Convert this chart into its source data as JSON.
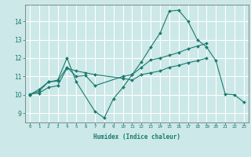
{
  "xlabel": "Humidex (Indice chaleur)",
  "xlim": [
    -0.5,
    23.5
  ],
  "ylim": [
    8.5,
    14.9
  ],
  "yticks": [
    9,
    10,
    11,
    12,
    13,
    14
  ],
  "xticks": [
    0,
    1,
    2,
    3,
    4,
    5,
    6,
    7,
    8,
    9,
    10,
    11,
    12,
    13,
    14,
    15,
    16,
    17,
    18,
    19,
    20,
    21,
    22,
    23
  ],
  "bg_color": "#cce8e8",
  "grid_color": "#ffffff",
  "line_color": "#1a7a6e",
  "series": [
    {
      "x": [
        0,
        1,
        2,
        3,
        4,
        5,
        7,
        8,
        9,
        10,
        11,
        12,
        13,
        14,
        15,
        16,
        17,
        18,
        19,
        20,
        21,
        22,
        23
      ],
      "y": [
        10.0,
        10.3,
        10.7,
        10.8,
        12.0,
        10.7,
        9.1,
        8.75,
        9.8,
        10.4,
        11.1,
        11.8,
        12.6,
        13.35,
        14.55,
        14.6,
        14.0,
        13.0,
        12.6,
        11.85,
        10.05,
        10.0,
        9.6
      ]
    },
    {
      "x": [
        0,
        1,
        2,
        3,
        4,
        5,
        6,
        7,
        10,
        11,
        12,
        13,
        14,
        15,
        16,
        17,
        18,
        19
      ],
      "y": [
        10.0,
        10.2,
        10.7,
        10.75,
        11.5,
        11.0,
        11.05,
        10.5,
        11.0,
        11.1,
        11.5,
        11.9,
        12.0,
        12.15,
        12.3,
        12.5,
        12.65,
        12.8
      ]
    },
    {
      "x": [
        0,
        1,
        2,
        3,
        4,
        5,
        6,
        7,
        10,
        11,
        12,
        13,
        14,
        15,
        16,
        17,
        18,
        19
      ],
      "y": [
        10.05,
        10.1,
        10.4,
        10.5,
        11.45,
        11.3,
        11.2,
        11.1,
        10.9,
        10.8,
        11.1,
        11.2,
        11.3,
        11.5,
        11.6,
        11.75,
        11.85,
        12.0
      ]
    }
  ]
}
